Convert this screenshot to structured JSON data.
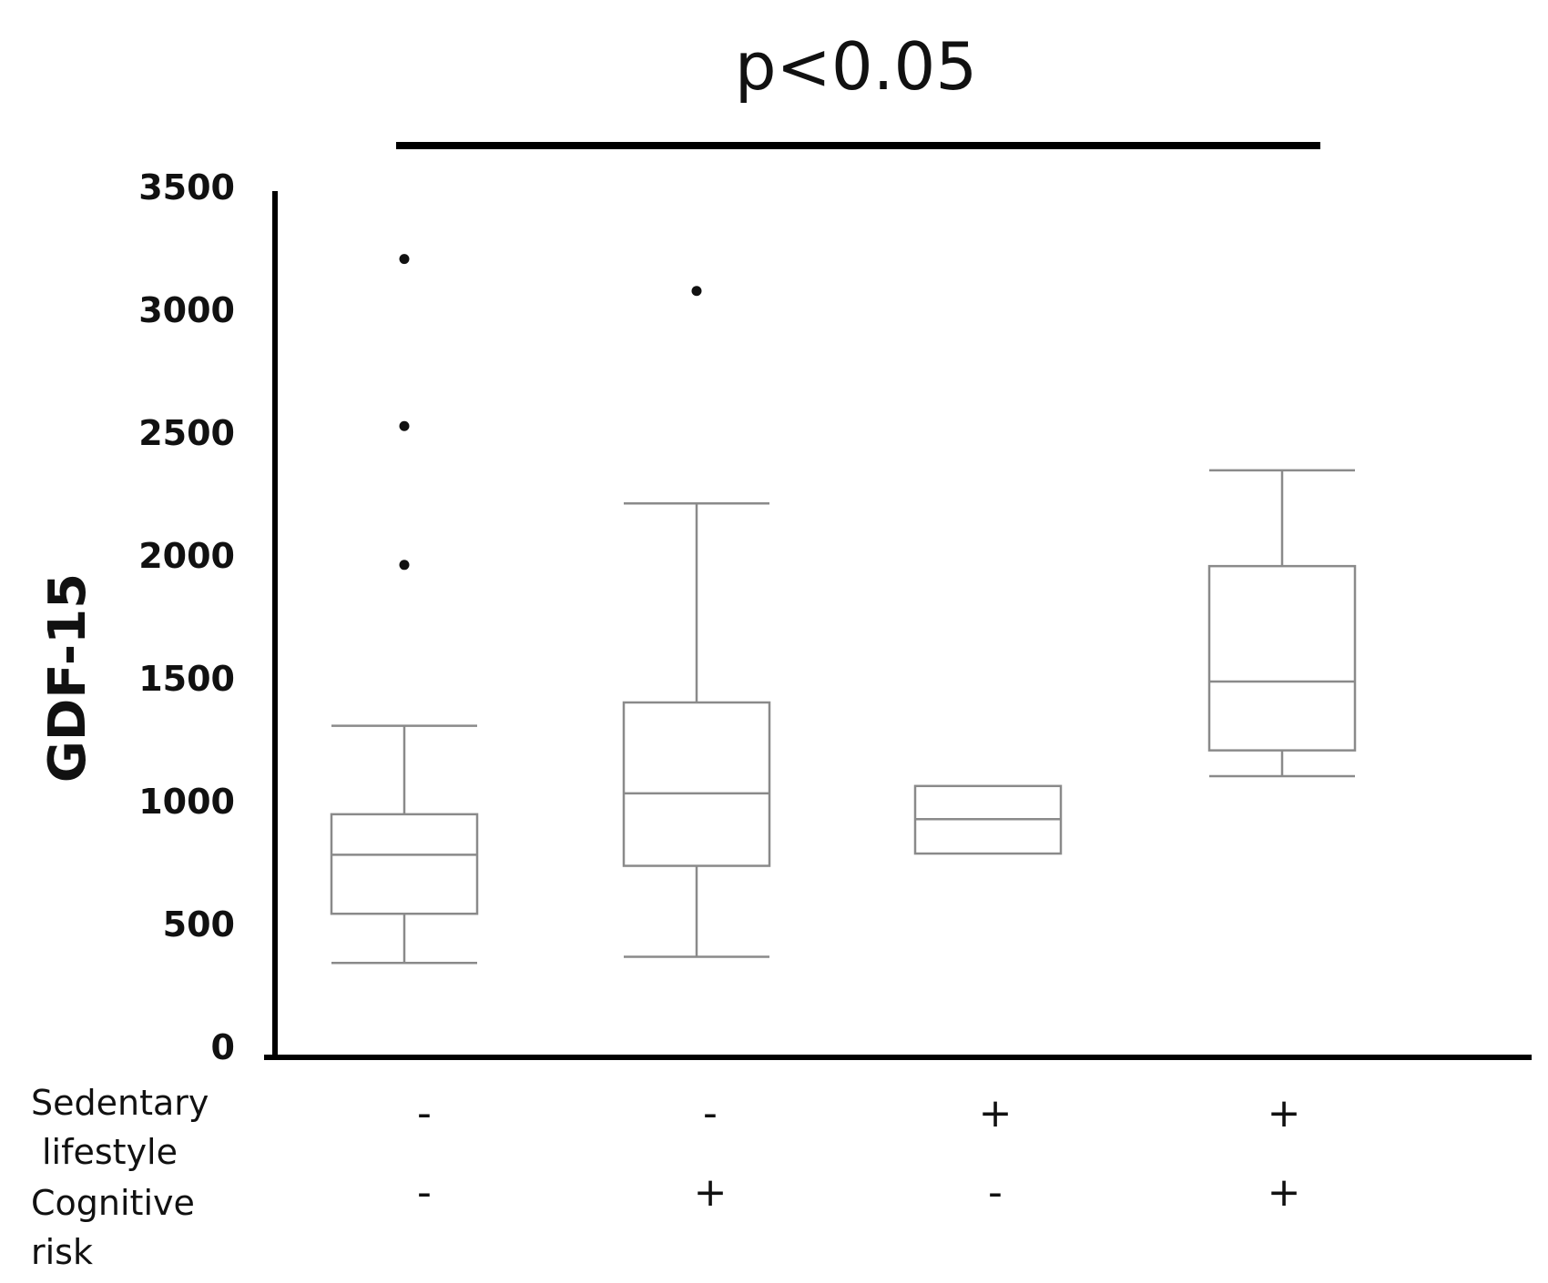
{
  "chart_data": {
    "type": "box",
    "title": "",
    "annotation": "p<0.05",
    "ylabel": "GDF-15",
    "xlabel": "",
    "ylim": [
      0,
      3500
    ],
    "yticks": [
      "0",
      "500",
      "1000",
      "1500",
      "2000",
      "2500",
      "3000",
      "3500"
    ],
    "factor_rows": [
      {
        "label_lines": [
          "Sedentary",
          "lifestyle"
        ],
        "values": [
          "-",
          "-",
          "+",
          "+"
        ]
      },
      {
        "label_lines": [
          "Cognitive",
          "risk"
        ],
        "values": [
          "-",
          "+",
          "-",
          "+"
        ]
      }
    ],
    "groups": [
      {
        "min": 340,
        "q1": 540,
        "median": 780,
        "q3": 945,
        "max": 1305,
        "outliers": [
          1960,
          2525,
          3205
        ]
      },
      {
        "min": 365,
        "q1": 735,
        "median": 1030,
        "q3": 1400,
        "max": 2210,
        "outliers": [
          3075
        ]
      },
      {
        "min": null,
        "q1": 785,
        "median": 925,
        "q3": 1060,
        "max": null,
        "outliers": []
      },
      {
        "min": 1100,
        "q1": 1205,
        "median": 1485,
        "q3": 1955,
        "max": 2345,
        "outliers": []
      }
    ],
    "grid": false,
    "legend": "none"
  }
}
